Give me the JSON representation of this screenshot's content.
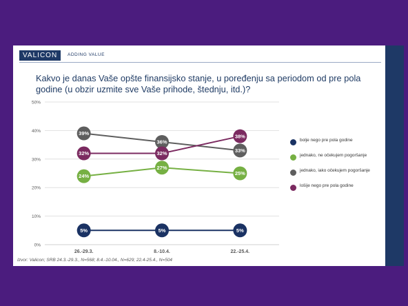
{
  "header": {
    "brand": "VALICON",
    "tagline": "ADDING VALUE"
  },
  "colors": {
    "background": "#4b1c7e",
    "brand": "#1e3966",
    "grid": "#d9d9d9"
  },
  "chart_data": {
    "type": "line",
    "title": "Kakvo je danas Vaše opšte finansijsko stanje, u poređenju sa periodom od pre pola godine (u obzir uzmite sve Vaše prihode, štednju, itd.)?",
    "categories": [
      "26.-29.3.",
      "8.-10.4.",
      "22.-25.4."
    ],
    "y_ticks": [
      "0%",
      "10%",
      "20%",
      "30%",
      "40%",
      "50%"
    ],
    "ylim": [
      0,
      50
    ],
    "grid": true,
    "legend_position": "right",
    "series": [
      {
        "name": "bolje nego pre pola godine",
        "color": "#1a3263",
        "values": [
          5,
          5,
          5
        ],
        "labels": [
          "5%",
          "5%",
          "5%"
        ]
      },
      {
        "name": "jednako, ne očekujem pogoršanje",
        "color": "#76b043",
        "values": [
          24,
          27,
          25
        ],
        "labels": [
          "24%",
          "27%",
          "25%"
        ]
      },
      {
        "name": "jednako, iako očekujem pogoršanje",
        "color": "#5e5e5e",
        "values": [
          39,
          36,
          33
        ],
        "labels": [
          "39%",
          "36%",
          "33%"
        ]
      },
      {
        "name": "lošije nego pre pola godine",
        "color": "#7b2a60",
        "values": [
          32,
          32,
          38
        ],
        "labels": [
          "32%",
          "32%",
          "38%"
        ]
      }
    ]
  },
  "source": "Izvor: Valicon; SRB 24.3.-29.3., N=568; 8.4.-10.04., N=629; 22.4-25.4., N=504"
}
